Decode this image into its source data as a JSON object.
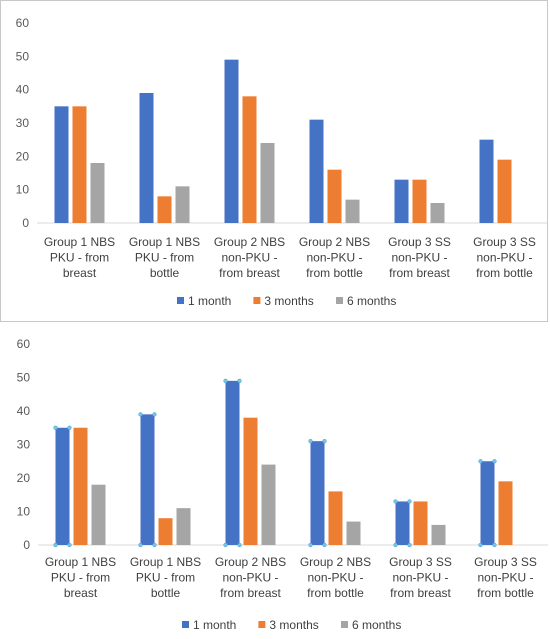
{
  "chart_data": [
    {
      "type": "bar",
      "categories": [
        [
          "Group 1 NBS",
          "PKU - from",
          "breast"
        ],
        [
          "Group 1 NBS",
          "PKU - from",
          "bottle"
        ],
        [
          "Group 2 NBS",
          "non-PKU -",
          "from breast"
        ],
        [
          "Group 2 NBS",
          "non-PKU -",
          "from bottle"
        ],
        [
          "Group 3 SS",
          "non-PKU -",
          "from breast"
        ],
        [
          "Group 3 SS",
          "non-PKU -",
          "from bottle"
        ]
      ],
      "series": [
        {
          "name": "1 month",
          "color": "#4472C4",
          "values": [
            35,
            39,
            49,
            31,
            13,
            25
          ]
        },
        {
          "name": "3 months",
          "color": "#ED7D31",
          "values": [
            35,
            8,
            38,
            16,
            13,
            19
          ]
        },
        {
          "name": "6 months",
          "color": "#A5A5A5",
          "values": [
            18,
            11,
            24,
            7,
            6,
            0
          ]
        }
      ],
      "ylim": [
        0,
        60
      ],
      "yticks": [
        0,
        10,
        20,
        30,
        40,
        50,
        60
      ],
      "grid": false,
      "legend": "bottom"
    },
    {
      "type": "bar",
      "categories": [
        [
          "Group 1 NBS",
          "PKU - from",
          "breast"
        ],
        [
          "Group 1 NBS",
          "PKU - from",
          "bottle"
        ],
        [
          "Group 2 NBS",
          "non-PKU -",
          "from breast"
        ],
        [
          "Group 2 NBS",
          "non-PKU -",
          "from bottle"
        ],
        [
          "Group 3 SS",
          "non-PKU -",
          "from breast"
        ],
        [
          "Group 3 SS",
          "non-PKU -",
          "from bottle"
        ]
      ],
      "series": [
        {
          "name": "1 month",
          "color": "#4472C4",
          "values": [
            35,
            39,
            49,
            31,
            13,
            25
          ]
        },
        {
          "name": "3 months",
          "color": "#ED7D31",
          "values": [
            35,
            8,
            38,
            16,
            13,
            19
          ]
        },
        {
          "name": "6 months",
          "color": "#A5A5A5",
          "values": [
            18,
            11,
            24,
            7,
            6,
            0
          ]
        }
      ],
      "ylim": [
        0,
        60
      ],
      "yticks": [
        0,
        10,
        20,
        30,
        40,
        50,
        60
      ],
      "grid": false,
      "legend": "bottom",
      "selected_series": "1 month"
    }
  ]
}
